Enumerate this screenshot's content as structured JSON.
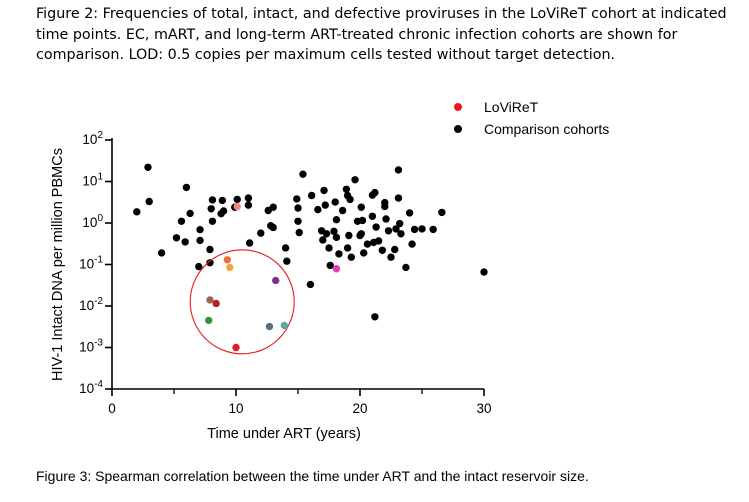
{
  "caption_top": {
    "label": "Figure 2:",
    "text": "Frequencies of total, intact, and defective proviruses in the LoViReT cohort at indicated time points. EC, mART, and long-term ART-treated chronic infection cohorts are shown for comparison. LOD: 0.5 copies per maximum cells tested without target detection."
  },
  "caption_bottom": "Figure 3: Spearman correlation between the time under ART and the intact reservoir size.",
  "colors": {
    "comparison": "#000000",
    "loviret_legend": "#e8191f",
    "circle": "#e8191f"
  },
  "chart_data": {
    "type": "scatter",
    "xlabel": "Time under ART (years)",
    "ylabel": "HIV-1 Intact DNA per million PBMCs",
    "xlim": [
      0,
      30
    ],
    "ylim_log10": [
      -4,
      2
    ],
    "y_scale": "log10",
    "x_ticks": [
      "0",
      "10",
      "20",
      "30"
    ],
    "y_ticks": [
      {
        "base": "10",
        "exp": "2"
      },
      {
        "base": "10",
        "exp": "1"
      },
      {
        "base": "10",
        "exp": "0"
      },
      {
        "base": "10",
        "exp": "-1"
      },
      {
        "base": "10",
        "exp": "-2"
      },
      {
        "base": "10",
        "exp": "-3"
      },
      {
        "base": "10",
        "exp": "-4"
      }
    ],
    "legend": {
      "position": "top-right",
      "items": [
        "LoViReT",
        "Comparison cohorts"
      ]
    },
    "annotation": {
      "type": "circle",
      "center": [
        10.5,
        0.0126
      ],
      "note": "encircles LoViReT points"
    },
    "series": [
      {
        "name": "LoViReT",
        "points": [
          {
            "x": 10.1,
            "y": 2.5,
            "color": "#f08a7e"
          },
          {
            "x": 9.3,
            "y": 0.13,
            "color": "#f26d3d"
          },
          {
            "x": 9.5,
            "y": 0.085,
            "color": "#f7a23c"
          },
          {
            "x": 18.1,
            "y": 0.079,
            "color": "#e040a8"
          },
          {
            "x": 13.2,
            "y": 0.041,
            "color": "#7b2f8e"
          },
          {
            "x": 7.9,
            "y": 0.014,
            "color": "#a0634a"
          },
          {
            "x": 8.4,
            "y": 0.0115,
            "color": "#b3281e"
          },
          {
            "x": 7.8,
            "y": 0.0045,
            "color": "#3b8f3b"
          },
          {
            "x": 13.9,
            "y": 0.0034,
            "color": "#5fa89a"
          },
          {
            "x": 12.7,
            "y": 0.0032,
            "color": "#5b6a78"
          },
          {
            "x": 10.0,
            "y": 0.001,
            "color": "#e8191f"
          }
        ]
      },
      {
        "name": "Comparison cohorts",
        "points": [
          {
            "x": 2.0,
            "y": 1.86
          },
          {
            "x": 2.9,
            "y": 22
          },
          {
            "x": 3.0,
            "y": 3.3
          },
          {
            "x": 4.0,
            "y": 0.19
          },
          {
            "x": 5.2,
            "y": 0.44
          },
          {
            "x": 5.6,
            "y": 1.1
          },
          {
            "x": 5.9,
            "y": 0.35
          },
          {
            "x": 6.0,
            "y": 7.2
          },
          {
            "x": 6.3,
            "y": 1.7
          },
          {
            "x": 7.1,
            "y": 0.69
          },
          {
            "x": 7.1,
            "y": 0.38
          },
          {
            "x": 7.0,
            "y": 0.089
          },
          {
            "x": 7.9,
            "y": 0.11
          },
          {
            "x": 7.9,
            "y": 0.23
          },
          {
            "x": 8.1,
            "y": 1.1
          },
          {
            "x": 8.1,
            "y": 3.6
          },
          {
            "x": 8.0,
            "y": 2.2
          },
          {
            "x": 8.8,
            "y": 1.68
          },
          {
            "x": 8.9,
            "y": 3.5
          },
          {
            "x": 9.0,
            "y": 1.95
          },
          {
            "x": 9.9,
            "y": 2.4
          },
          {
            "x": 10.1,
            "y": 3.7
          },
          {
            "x": 11.0,
            "y": 4.0
          },
          {
            "x": 11.0,
            "y": 2.7
          },
          {
            "x": 11.1,
            "y": 0.33
          },
          {
            "x": 12.0,
            "y": 0.57
          },
          {
            "x": 12.6,
            "y": 2.0
          },
          {
            "x": 12.8,
            "y": 0.86
          },
          {
            "x": 13.0,
            "y": 2.4
          },
          {
            "x": 13.0,
            "y": 0.78
          },
          {
            "x": 14.0,
            "y": 0.25
          },
          {
            "x": 14.1,
            "y": 0.12
          },
          {
            "x": 14.9,
            "y": 3.8
          },
          {
            "x": 15.0,
            "y": 2.3
          },
          {
            "x": 15.0,
            "y": 1.1
          },
          {
            "x": 15.1,
            "y": 0.59
          },
          {
            "x": 15.4,
            "y": 15
          },
          {
            "x": 16.0,
            "y": 0.033
          },
          {
            "x": 16.1,
            "y": 4.6
          },
          {
            "x": 16.6,
            "y": 2.1
          },
          {
            "x": 16.9,
            "y": 0.65
          },
          {
            "x": 17.0,
            "y": 0.39
          },
          {
            "x": 17.1,
            "y": 6.1
          },
          {
            "x": 17.2,
            "y": 2.7
          },
          {
            "x": 17.3,
            "y": 0.55
          },
          {
            "x": 17.5,
            "y": 0.25
          },
          {
            "x": 17.6,
            "y": 0.095
          },
          {
            "x": 17.9,
            "y": 0.63
          },
          {
            "x": 18.0,
            "y": 3.2
          },
          {
            "x": 18.1,
            "y": 1.2
          },
          {
            "x": 18.1,
            "y": 0.45
          },
          {
            "x": 18.3,
            "y": 0.18
          },
          {
            "x": 18.6,
            "y": 2.0
          },
          {
            "x": 18.9,
            "y": 6.5
          },
          {
            "x": 19.0,
            "y": 4.6
          },
          {
            "x": 19.0,
            "y": 0.25
          },
          {
            "x": 19.1,
            "y": 0.5
          },
          {
            "x": 19.2,
            "y": 3.7
          },
          {
            "x": 19.3,
            "y": 0.15
          },
          {
            "x": 19.6,
            "y": 11
          },
          {
            "x": 19.8,
            "y": 1.1
          },
          {
            "x": 20.0,
            "y": 0.5
          },
          {
            "x": 20.1,
            "y": 2.4
          },
          {
            "x": 20.1,
            "y": 0.55
          },
          {
            "x": 20.2,
            "y": 1.15
          },
          {
            "x": 20.3,
            "y": 0.19
          },
          {
            "x": 20.6,
            "y": 0.31
          },
          {
            "x": 21.0,
            "y": 4.7
          },
          {
            "x": 21.0,
            "y": 1.45
          },
          {
            "x": 21.1,
            "y": 0.34
          },
          {
            "x": 21.2,
            "y": 0.0055
          },
          {
            "x": 21.2,
            "y": 5.4
          },
          {
            "x": 21.3,
            "y": 0.8
          },
          {
            "x": 21.5,
            "y": 0.37
          },
          {
            "x": 21.8,
            "y": 0.22
          },
          {
            "x": 22.0,
            "y": 3.1
          },
          {
            "x": 22.0,
            "y": 2.5
          },
          {
            "x": 22.1,
            "y": 1.25
          },
          {
            "x": 22.3,
            "y": 0.65
          },
          {
            "x": 22.5,
            "y": 0.15
          },
          {
            "x": 22.8,
            "y": 0.23
          },
          {
            "x": 22.9,
            "y": 0.72
          },
          {
            "x": 23.1,
            "y": 19
          },
          {
            "x": 23.1,
            "y": 4.0
          },
          {
            "x": 23.2,
            "y": 0.97
          },
          {
            "x": 23.3,
            "y": 0.55
          },
          {
            "x": 23.7,
            "y": 0.085
          },
          {
            "x": 24.0,
            "y": 1.75
          },
          {
            "x": 24.2,
            "y": 0.31
          },
          {
            "x": 24.4,
            "y": 0.7
          },
          {
            "x": 25.0,
            "y": 0.72
          },
          {
            "x": 25.9,
            "y": 0.7
          },
          {
            "x": 26.6,
            "y": 1.8
          },
          {
            "x": 30.0,
            "y": 0.066
          }
        ]
      }
    ]
  }
}
